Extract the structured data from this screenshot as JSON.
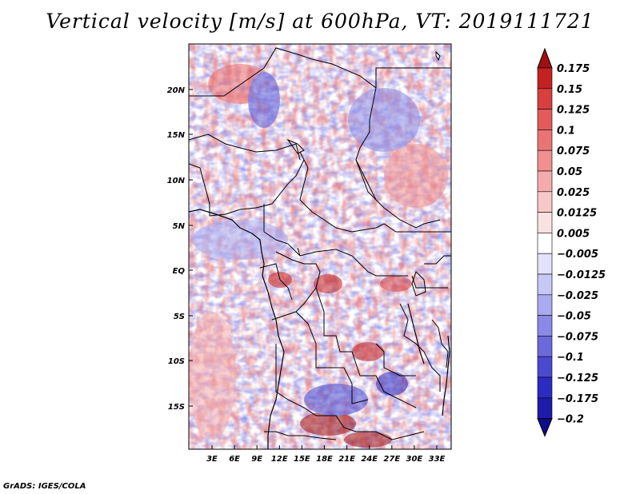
{
  "title": "Vertical velocity [m/s] at 600hPa, VT: 2019111721",
  "footer": "GrADS: IGES/COLA",
  "map": {
    "lat_range": [
      -19,
      24.5
    ],
    "lon_range": [
      0,
      35
    ],
    "lat_ticks": [
      "20N",
      "15N",
      "10N",
      "5N",
      "EQ",
      "5S",
      "10S",
      "15S"
    ],
    "lon_ticks": [
      "3E",
      "6E",
      "9E",
      "12E",
      "15E",
      "18E",
      "21E",
      "24E",
      "27E",
      "30E",
      "33E"
    ]
  },
  "colorbar": {
    "labels": [
      "0.175",
      "0.15",
      "0.125",
      "0.1",
      "0.075",
      "0.05",
      "0.025",
      "0.0125",
      "0.005",
      "-0.005",
      "-0.0125",
      "-0.025",
      "-0.05",
      "-0.075",
      "-0.1",
      "-0.125",
      "-0.175",
      "-0.2"
    ],
    "colors": [
      "#a01010",
      "#c42222",
      "#d84040",
      "#e45a5a",
      "#ea7474",
      "#f09090",
      "#f5abab",
      "#f8c8c8",
      "#fbe2e2",
      "#ffffff",
      "#e2e2fb",
      "#c8c8f6",
      "#aaaaf0",
      "#8a8ae6",
      "#6a6adc",
      "#4a4ad0",
      "#2c2cc2",
      "#1c1ca8",
      "#0c0c8c"
    ]
  }
}
